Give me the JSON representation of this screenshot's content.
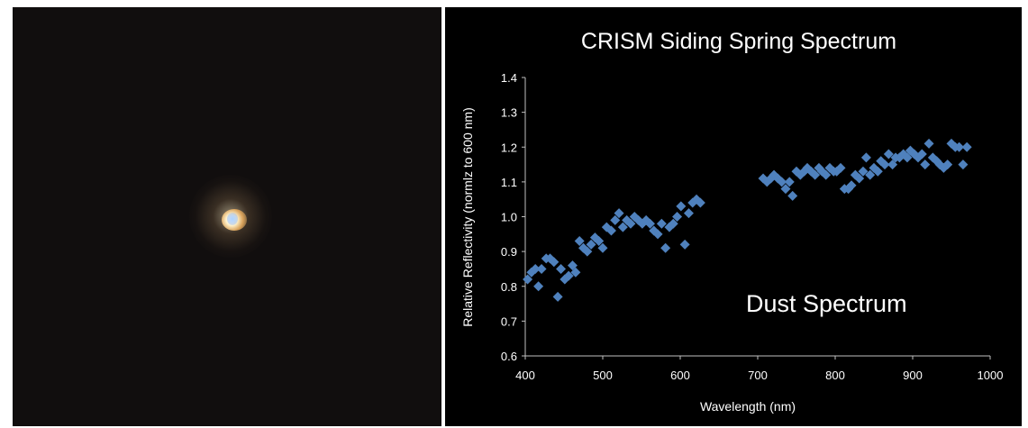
{
  "photo": {
    "description_icon": "comet-image"
  },
  "chart_data": {
    "type": "scatter",
    "title": "CRISM Siding Spring Spectrum",
    "xlabel": "Wavelength (nm)",
    "ylabel": "Relative Reflectivity (normlz to 600 nm)",
    "annotation": "Dust Spectrum",
    "xlim": [
      400,
      1000
    ],
    "ylim": [
      0.6,
      1.4
    ],
    "xticks": [
      "400",
      "500",
      "600",
      "700",
      "800",
      "900",
      "1000"
    ],
    "yticks": [
      "0.6",
      "0.7",
      "0.8",
      "0.9",
      "1.0",
      "1.1",
      "1.2",
      "1.3",
      "1.4"
    ],
    "grid": false,
    "marker_color": "#4f81bd",
    "series": [
      {
        "points": [
          [
            403,
            0.82
          ],
          [
            408,
            0.84
          ],
          [
            413,
            0.85
          ],
          [
            417,
            0.8
          ],
          [
            421,
            0.85
          ],
          [
            427,
            0.88
          ],
          [
            432,
            0.88
          ],
          [
            437,
            0.87
          ],
          [
            442,
            0.77
          ],
          [
            446,
            0.85
          ],
          [
            451,
            0.82
          ],
          [
            456,
            0.83
          ],
          [
            461,
            0.86
          ],
          [
            465,
            0.84
          ],
          [
            470,
            0.93
          ],
          [
            475,
            0.91
          ],
          [
            480,
            0.9
          ],
          [
            485,
            0.92
          ],
          [
            490,
            0.94
          ],
          [
            495,
            0.93
          ],
          [
            500,
            0.91
          ],
          [
            505,
            0.97
          ],
          [
            511,
            0.96
          ],
          [
            516,
            0.99
          ],
          [
            521,
            1.01
          ],
          [
            526,
            0.97
          ],
          [
            531,
            0.99
          ],
          [
            536,
            0.98
          ],
          [
            541,
            1.0
          ],
          [
            546,
            0.99
          ],
          [
            551,
            0.98
          ],
          [
            556,
            0.99
          ],
          [
            561,
            0.98
          ],
          [
            566,
            0.96
          ],
          [
            571,
            0.95
          ],
          [
            576,
            0.98
          ],
          [
            581,
            0.91
          ],
          [
            586,
            0.97
          ],
          [
            591,
            0.98
          ],
          [
            596,
            1.0
          ],
          [
            601,
            1.03
          ],
          [
            606,
            0.92
          ],
          [
            611,
            1.01
          ],
          [
            616,
            1.04
          ],
          [
            621,
            1.05
          ],
          [
            626,
            1.04
          ],
          [
            707,
            1.11
          ],
          [
            712,
            1.1
          ],
          [
            717,
            1.11
          ],
          [
            721,
            1.12
          ],
          [
            726,
            1.11
          ],
          [
            731,
            1.1
          ],
          [
            736,
            1.08
          ],
          [
            741,
            1.1
          ],
          [
            745,
            1.06
          ],
          [
            750,
            1.13
          ],
          [
            755,
            1.12
          ],
          [
            760,
            1.13
          ],
          [
            764,
            1.14
          ],
          [
            769,
            1.13
          ],
          [
            774,
            1.12
          ],
          [
            779,
            1.14
          ],
          [
            783,
            1.13
          ],
          [
            788,
            1.12
          ],
          [
            793,
            1.14
          ],
          [
            798,
            1.13
          ],
          [
            802,
            1.13
          ],
          [
            807,
            1.14
          ],
          [
            812,
            1.08
          ],
          [
            817,
            1.08
          ],
          [
            821,
            1.09
          ],
          [
            826,
            1.12
          ],
          [
            831,
            1.11
          ],
          [
            836,
            1.13
          ],
          [
            840,
            1.17
          ],
          [
            845,
            1.12
          ],
          [
            850,
            1.14
          ],
          [
            855,
            1.13
          ],
          [
            859,
            1.16
          ],
          [
            864,
            1.15
          ],
          [
            869,
            1.18
          ],
          [
            874,
            1.15
          ],
          [
            878,
            1.17
          ],
          [
            883,
            1.17
          ],
          [
            888,
            1.18
          ],
          [
            893,
            1.17
          ],
          [
            897,
            1.19
          ],
          [
            902,
            1.18
          ],
          [
            907,
            1.17
          ],
          [
            912,
            1.18
          ],
          [
            916,
            1.15
          ],
          [
            921,
            1.21
          ],
          [
            926,
            1.17
          ],
          [
            931,
            1.16
          ],
          [
            935,
            1.15
          ],
          [
            940,
            1.14
          ],
          [
            945,
            1.15
          ],
          [
            950,
            1.21
          ],
          [
            955,
            1.2
          ],
          [
            960,
            1.2
          ],
          [
            965,
            1.15
          ],
          [
            970,
            1.2
          ]
        ]
      }
    ]
  }
}
